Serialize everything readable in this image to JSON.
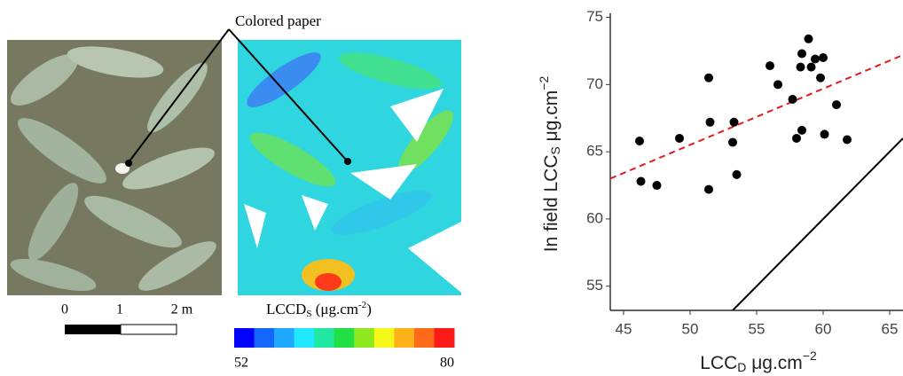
{
  "images": {
    "annotation": "Colored paper",
    "scale_labels": [
      "0",
      "1",
      "2 m"
    ],
    "colorbar": {
      "label": [
        "LCCD",
        "S",
        " (μg.cm",
        "-2",
        ")"
      ],
      "colors": [
        "#0000ff",
        "#1466ff",
        "#1fa8ff",
        "#20e8ff",
        "#21e8a0",
        "#22e044",
        "#8ee820",
        "#f7f71a",
        "#ffb21a",
        "#ff6a1a",
        "#ff1a1a"
      ],
      "min_label": "52",
      "max_label": "80"
    }
  },
  "chart_data": {
    "type": "scatter",
    "x_label": [
      "LCC",
      "D",
      " μg.cm",
      "−2"
    ],
    "y_label": [
      "In field LCC",
      "S",
      " μg.cm",
      "−2"
    ],
    "x": [
      46.2,
      46.3,
      47.5,
      49.2,
      51.4,
      51.5,
      51.4,
      53.3,
      53.2,
      53.5,
      56.0,
      56.6,
      57.7,
      58.0,
      58.3,
      58.4,
      58.4,
      58.9,
      59.1,
      59.4,
      59.8,
      60.0,
      60.1,
      61.0,
      61.8
    ],
    "values": [
      65.8,
      62.8,
      62.5,
      66.0,
      70.5,
      67.2,
      62.2,
      67.2,
      65.7,
      63.3,
      71.4,
      70.0,
      68.9,
      66.0,
      71.3,
      72.3,
      66.6,
      73.4,
      71.3,
      71.9,
      70.5,
      72.0,
      66.3,
      68.5,
      65.9
    ],
    "color": "#000000",
    "fit_line": {
      "x": [
        44,
        66
      ],
      "y": [
        63.0,
        72.2
      ],
      "color": "#e41a1c"
    },
    "identity_line": {
      "x": [
        53.2,
        66
      ],
      "y": [
        53.2,
        66
      ],
      "color": "#000000"
    },
    "xlim": [
      44,
      66
    ],
    "ylim": [
      53.2,
      75.3
    ],
    "xticks": [
      45,
      50,
      55,
      60,
      65
    ],
    "yticks": [
      55,
      60,
      65,
      70,
      75
    ]
  }
}
